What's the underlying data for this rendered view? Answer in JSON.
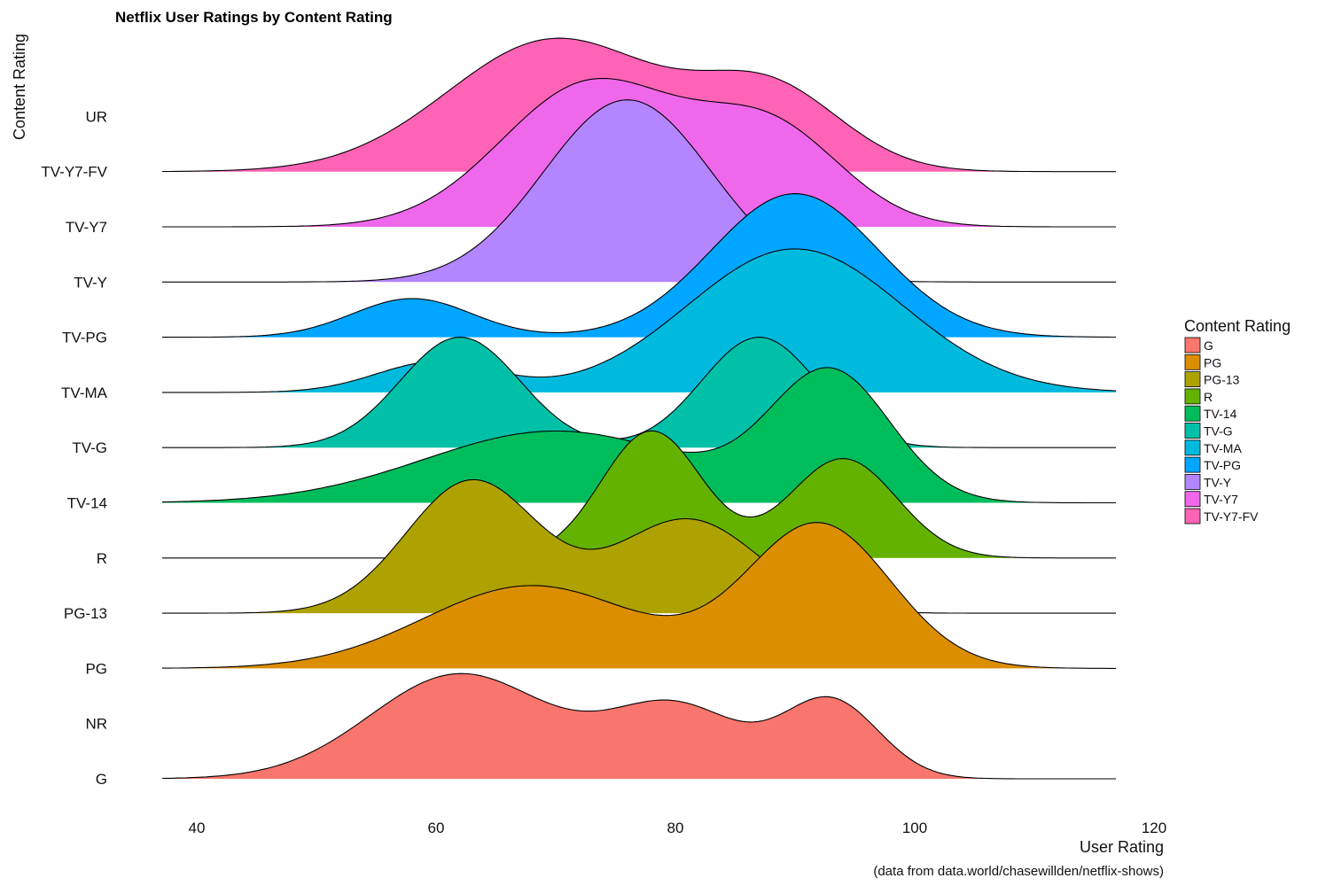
{
  "chart_data": {
    "type": "ridgeline",
    "title": "Netflix User Ratings by Content Rating",
    "xlabel": "User Rating",
    "ylabel": "Content Rating",
    "caption": "(data from data.world/chasewillden/netflix-shows)",
    "xlim": [
      37,
      122
    ],
    "x_ticks": [
      40,
      60,
      80,
      100,
      120
    ],
    "grid": false,
    "legend": {
      "title": "Content Rating",
      "placement": "right",
      "entries": [
        "G",
        "PG",
        "PG-13",
        "R",
        "TV-14",
        "TV-G",
        "TV-MA",
        "TV-PG",
        "TV-Y",
        "TV-Y7",
        "TV-Y7-FV"
      ]
    },
    "categories": [
      "G",
      "NR",
      "PG",
      "PG-13",
      "R",
      "TV-14",
      "TV-G",
      "TV-MA",
      "TV-PG",
      "TV-Y",
      "TV-Y7",
      "TV-Y7-FV",
      "UR"
    ],
    "series": [
      {
        "name": "G",
        "baseline": "G",
        "color": "#F8766D",
        "peaks": [
          [
            62,
            1.9,
            7.5
          ],
          [
            80,
            1.3,
            5.5
          ],
          [
            93,
            1.4,
            4
          ]
        ]
      },
      {
        "name": "PG",
        "baseline": "PG",
        "color": "#DB8E00",
        "peaks": [
          [
            68,
            1.5,
            9
          ],
          [
            92,
            2.6,
            6
          ]
        ]
      },
      {
        "name": "PG-13",
        "baseline": "PG-13",
        "color": "#AEA200",
        "peaks": [
          [
            63,
            2.4,
            5.5
          ],
          [
            81,
            1.7,
            6
          ]
        ]
      },
      {
        "name": "R",
        "baseline": "R",
        "color": "#64B200",
        "peaks": [
          [
            78,
            2.3,
            4.2
          ],
          [
            94,
            1.8,
            4.5
          ]
        ]
      },
      {
        "name": "TV-14",
        "baseline": "TV-14",
        "color": "#00BD5C",
        "peaks": [
          [
            70,
            1.3,
            11
          ],
          [
            93,
            2.3,
            5
          ]
        ]
      },
      {
        "name": "TV-G",
        "baseline": "TV-G",
        "color": "#00C1A7",
        "peaks": [
          [
            62,
            2.0,
            5
          ],
          [
            87,
            2.0,
            4.8
          ]
        ]
      },
      {
        "name": "TV-MA",
        "baseline": "TV-MA",
        "color": "#00BADE",
        "peaks": [
          [
            60,
            0.55,
            5
          ],
          [
            90,
            2.6,
            9
          ]
        ]
      },
      {
        "name": "TV-PG",
        "baseline": "TV-PG",
        "color": "#00A6FF",
        "peaks": [
          [
            58,
            0.7,
            5
          ],
          [
            90,
            2.6,
            7
          ]
        ]
      },
      {
        "name": "TV-Y",
        "baseline": "TV-Y",
        "color": "#B385FF",
        "peaks": [
          [
            76,
            3.3,
            7
          ]
        ]
      },
      {
        "name": "TV-Y7",
        "baseline": "TV-Y7",
        "color": "#EF67EB",
        "peaks": [
          [
            73,
            2.6,
            7.5
          ],
          [
            88,
            1.7,
            6
          ]
        ]
      },
      {
        "name": "TV-Y7-FV",
        "baseline": "TV-Y7-FV",
        "color": "#FF63B6",
        "peaks": [
          [
            70,
            2.4,
            9
          ],
          [
            88,
            1.4,
            6
          ]
        ]
      }
    ]
  }
}
